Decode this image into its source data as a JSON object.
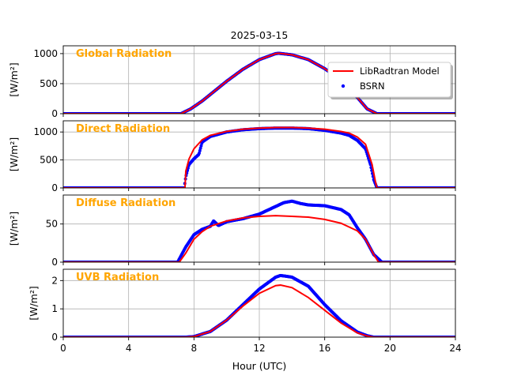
{
  "chart_data": {
    "type": "line",
    "title": "2025-03-15",
    "xlabel": "Hour (UTC)",
    "xlim": [
      0,
      24
    ],
    "xticks": [
      0,
      4,
      8,
      12,
      16,
      20,
      24
    ],
    "grid": true,
    "legend": {
      "placement": "upper-right of first panel",
      "entries": [
        {
          "name": "LibRadtran Model",
          "style": "line",
          "color": "#ff0000"
        },
        {
          "name": "BSRN",
          "style": "dots",
          "color": "#0000ff"
        }
      ]
    },
    "panels": [
      {
        "label": "Global Radiation",
        "ylabel": "[W/m²]",
        "ylim": [
          0,
          1130
        ],
        "yticks": [
          0,
          500,
          1000
        ],
        "model": {
          "x": [
            0,
            7.2,
            7.8,
            8.5,
            9,
            10,
            11,
            12,
            13,
            13.2,
            14,
            15,
            16,
            17,
            18,
            18.6,
            19.2,
            24
          ],
          "y": [
            0,
            0,
            80,
            210,
            320,
            540,
            740,
            900,
            1000,
            1005,
            980,
            900,
            750,
            560,
            270,
            80,
            0,
            0
          ]
        },
        "bsrn": {
          "x": [
            0,
            7.2,
            7.8,
            8.5,
            9,
            10,
            11,
            12,
            13,
            13.2,
            14,
            15,
            16,
            17,
            18,
            18.6,
            19.2,
            24
          ],
          "y": [
            0,
            0,
            80,
            210,
            320,
            540,
            740,
            900,
            1000,
            1005,
            980,
            900,
            750,
            560,
            270,
            80,
            0,
            0
          ]
        }
      },
      {
        "label": "Direct Radiation",
        "ylabel": "[W/m²]",
        "ylim": [
          0,
          1200
        ],
        "yticks": [
          0,
          500,
          1000
        ],
        "model": {
          "x": [
            0,
            7.45,
            7.5,
            7.7,
            8,
            8.5,
            9,
            10,
            11,
            12,
            13,
            14,
            15,
            16,
            17,
            17.5,
            18,
            18.5,
            18.9,
            19.1,
            19.2,
            24
          ],
          "y": [
            0,
            0,
            300,
            520,
            700,
            860,
            940,
            1010,
            1050,
            1070,
            1080,
            1080,
            1070,
            1050,
            1010,
            980,
            910,
            780,
            420,
            120,
            0,
            0
          ]
        },
        "bsrn": {
          "x": [
            0,
            7.4,
            7.5,
            7.7,
            8,
            8.3,
            8.5,
            9,
            10,
            11,
            12,
            13,
            14,
            15,
            16,
            17,
            17.5,
            18,
            18.5,
            18.8,
            19,
            19.2,
            24
          ],
          "y": [
            0,
            0,
            200,
            420,
            520,
            600,
            820,
            920,
            1000,
            1040,
            1060,
            1070,
            1070,
            1060,
            1030,
            980,
            940,
            850,
            700,
            420,
            150,
            0,
            0
          ]
        }
      },
      {
        "label": "Diffuse Radiation",
        "ylabel": "[W/m²]",
        "ylim": [
          0,
          88
        ],
        "yticks": [
          0,
          50
        ],
        "model": {
          "x": [
            0,
            7.1,
            7.5,
            8,
            8.5,
            9,
            10,
            11,
            12,
            13,
            14,
            15,
            16,
            17,
            18,
            18.5,
            19,
            19.3,
            24
          ],
          "y": [
            0,
            0,
            12,
            30,
            40,
            47,
            54,
            58,
            60,
            61,
            60,
            59,
            56,
            51,
            41,
            30,
            10,
            0,
            0
          ]
        },
        "bsrn": {
          "x": [
            0,
            7,
            7.5,
            8,
            8.5,
            9,
            9.2,
            9.5,
            10,
            11,
            12,
            13,
            13.5,
            14,
            14.5,
            15,
            16,
            17,
            17.5,
            18,
            18.5,
            19,
            19.5,
            24
          ],
          "y": [
            0,
            0,
            20,
            36,
            43,
            47,
            54,
            48,
            53,
            57,
            63,
            73,
            78,
            80,
            77,
            75,
            74,
            69,
            62,
            45,
            30,
            10,
            0,
            0
          ]
        }
      },
      {
        "label": "UVB Radiation",
        "ylabel": "[W/m²]",
        "ylim": [
          0,
          2.4
        ],
        "yticks": [
          0,
          1,
          2
        ],
        "model": {
          "x": [
            0,
            7.5,
            8,
            9,
            10,
            11,
            12,
            13,
            13.3,
            14,
            15,
            16,
            17,
            18,
            18.6,
            19,
            24
          ],
          "y": [
            0,
            0,
            0.02,
            0.2,
            0.6,
            1.1,
            1.55,
            1.82,
            1.84,
            1.75,
            1.4,
            0.95,
            0.5,
            0.15,
            0.04,
            0,
            0
          ]
        },
        "bsrn": {
          "x": [
            0,
            7.5,
            8,
            9,
            10,
            11,
            12,
            13,
            13.3,
            14,
            15,
            16,
            17,
            18,
            18.6,
            19,
            24
          ],
          "y": [
            0,
            0,
            0.02,
            0.2,
            0.6,
            1.15,
            1.7,
            2.12,
            2.18,
            2.12,
            1.8,
            1.15,
            0.58,
            0.18,
            0.05,
            0,
            0
          ]
        }
      }
    ]
  }
}
